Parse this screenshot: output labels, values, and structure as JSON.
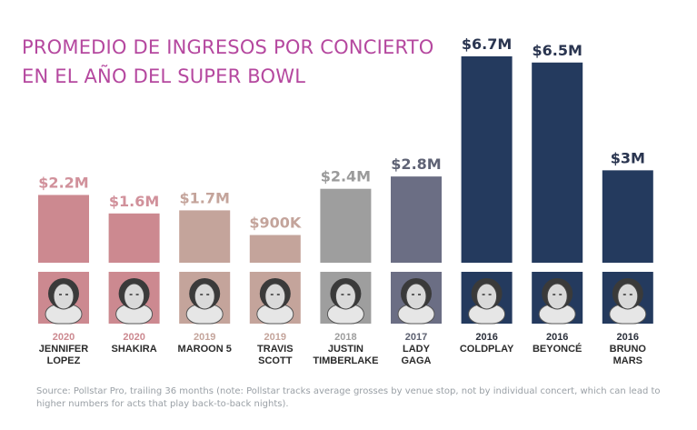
{
  "title_lines": [
    "PROMEDIO DE INGRESOS POR CONCIERTO",
    " EN EL AÑO DEL SUPER BOWL"
  ],
  "source_note": "Source: Pollstar Pro, trailing 36 months (note: Pollstar tracks average grosses by venue stop, not by individual concert, which can lead to higher numbers for acts that play back-to-back nights).",
  "chart_data": {
    "type": "bar",
    "title": "PROMEDIO DE INGRESOS POR CONCIERTO EN EL AÑO DEL SUPER BOWL",
    "ylabel": "",
    "xlabel": "",
    "ylim": [
      0,
      6.7
    ],
    "grid": false,
    "categories": [
      "JENNIFER LOPEZ",
      "SHAKIRA",
      "MAROON 5",
      "TRAVIS SCOTT",
      "JUSTIN TIMBERLAKE",
      "LADY GAGA",
      "COLDPLAY",
      "BEYONCÉ",
      "BRUNO MARS"
    ],
    "bars": [
      {
        "year": "2020",
        "name": [
          "JENNIFER",
          "LOPEZ"
        ],
        "value": 2.2,
        "label": "$2.2M",
        "color": "#cc8990",
        "year_color": "#cc8990",
        "label_color": "#d1919b"
      },
      {
        "year": "2020",
        "name": [
          "SHAKIRA"
        ],
        "value": 1.6,
        "label": "$1.6M",
        "color": "#cc8990",
        "year_color": "#cc8990",
        "label_color": "#d1919b"
      },
      {
        "year": "2019",
        "name": [
          "MAROON 5"
        ],
        "value": 1.7,
        "label": "$1.7M",
        "color": "#c4a49b",
        "year_color": "#c4a49b",
        "label_color": "#c4a49b"
      },
      {
        "year": "2019",
        "name": [
          "TRAVIS",
          "SCOTT"
        ],
        "value": 0.9,
        "label": "$900K",
        "color": "#c4a49b",
        "year_color": "#c4a49b",
        "label_color": "#c4a49b"
      },
      {
        "year": "2018",
        "name": [
          "JUSTIN",
          "TIMBERLAKE"
        ],
        "value": 2.4,
        "label": "$2.4M",
        "color": "#9e9e9e",
        "year_color": "#9e9e9e",
        "label_color": "#9a9a9a"
      },
      {
        "year": "2017",
        "name": [
          "LADY",
          "GAGA"
        ],
        "value": 2.8,
        "label": "$2.8M",
        "color": "#6b6e84",
        "year_color": "#5c6070",
        "label_color": "#5f6375"
      },
      {
        "year": "2016",
        "name": [
          "COLDPLAY"
        ],
        "value": 6.7,
        "label": "$6.7M",
        "color": "#243a5e",
        "year_color": "#2a2f3a",
        "label_color": "#2a3550"
      },
      {
        "year": "2016",
        "name": [
          "BEYONCÉ"
        ],
        "value": 6.5,
        "label": "$6.5M",
        "color": "#243a5e",
        "year_color": "#2a2f3a",
        "label_color": "#2a3550"
      },
      {
        "year": "2016",
        "name": [
          "BRUNO",
          "MARS"
        ],
        "value": 3.0,
        "label": "$3M",
        "color": "#243a5e",
        "year_color": "#2a2f3a",
        "label_color": "#2a3550"
      }
    ]
  }
}
